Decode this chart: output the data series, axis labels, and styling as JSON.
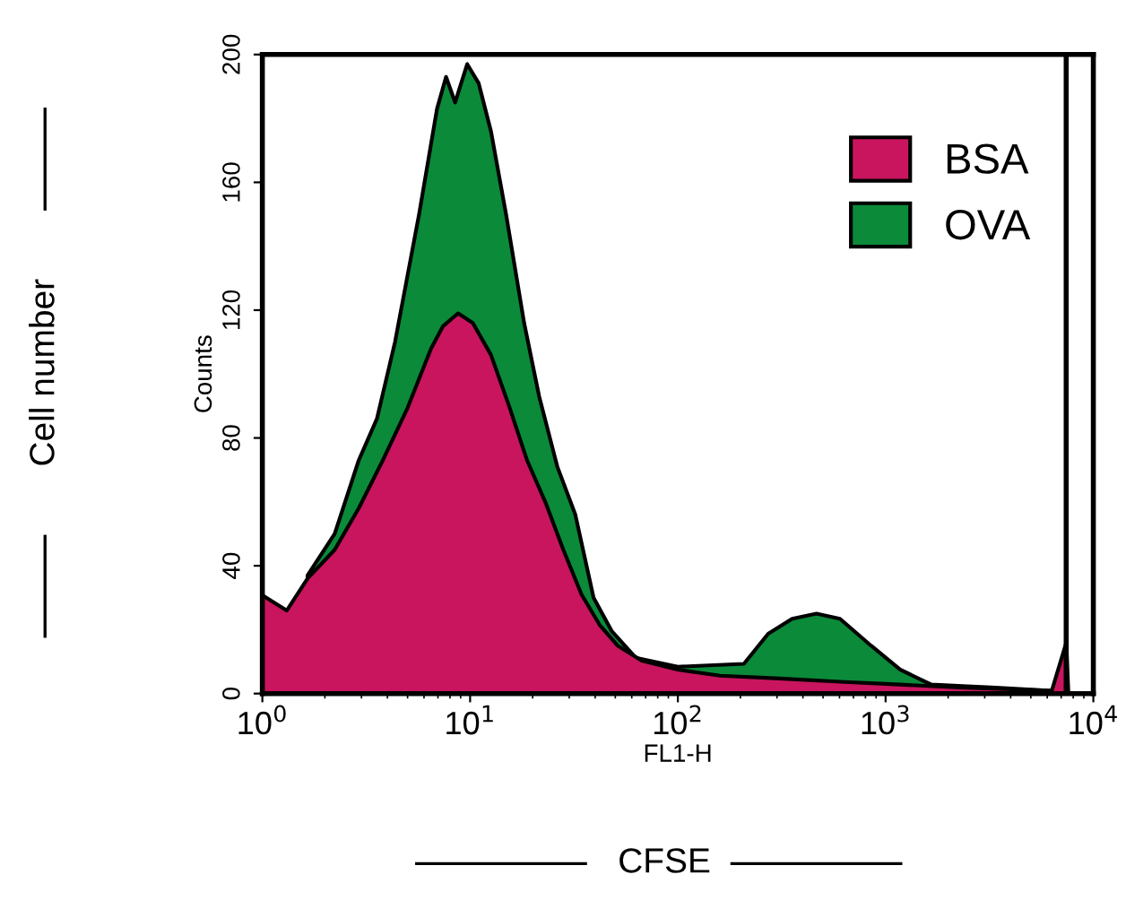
{
  "chart_data": {
    "type": "area",
    "xlabel": "FL1-H",
    "ylabel": "Counts",
    "annotations": [
      "Cell number",
      "CFSE"
    ],
    "log": "x",
    "xlim": [
      1,
      10000
    ],
    "ylim": [
      0,
      200
    ],
    "xticks": [
      {
        "value": 1,
        "label": "10$^{0}$"
      },
      {
        "value": 10,
        "label": "10$^{1}$"
      },
      {
        "value": 100,
        "label": "10$^{2}$"
      },
      {
        "value": 1000,
        "label": "10$^{3}$"
      },
      {
        "value": 10000,
        "label": "10$^{4}$"
      }
    ],
    "yticks": [
      0,
      40,
      80,
      120,
      160,
      200
    ],
    "grid": false,
    "legend": "top right",
    "ref_lines": [
      {
        "axis": "x",
        "value": 7400,
        "color": "#000000"
      }
    ],
    "series": [
      {
        "name": "OVA",
        "color": "#0b8a3a",
        "x": [
          1.65,
          2.23,
          2.91,
          3.56,
          4.35,
          5.68,
          6.93,
          7.66,
          8.47,
          9.68,
          11.0,
          12.6,
          14.9,
          18.2,
          21.5,
          26.3,
          32.1,
          39.3,
          48.0,
          62.7,
          100,
          208,
          272,
          355,
          465,
          603,
          851,
          1175,
          1660,
          3236,
          6310
        ],
        "values": [
          37,
          50,
          73,
          86,
          110,
          150,
          183,
          193,
          185,
          197,
          191,
          176,
          150,
          116,
          93,
          71,
          56,
          30,
          19.6,
          11.2,
          8.4,
          9.3,
          18.7,
          23.4,
          25,
          23.4,
          15,
          7.5,
          2.8,
          1.9,
          0.9
        ]
      },
      {
        "name": "BSA",
        "color": "#c8155e",
        "x": [
          1,
          1.31,
          1.65,
          2.23,
          2.91,
          3.8,
          4.97,
          6.49,
          7.41,
          8.75,
          10.3,
          12.6,
          15.4,
          18.8,
          23.0,
          28.1,
          34.4,
          42.0,
          51.3,
          67.0,
          100,
          160,
          309,
          603,
          1175,
          2291,
          6310,
          7413,
          7586
        ],
        "values": [
          30.8,
          26,
          36,
          45,
          58,
          73,
          89,
          108,
          115,
          119,
          116,
          106,
          90,
          73,
          60,
          45,
          31,
          21.5,
          15,
          10.3,
          7.5,
          5.6,
          4.7,
          3.7,
          2.8,
          1.9,
          0.9,
          16,
          0
        ]
      }
    ]
  }
}
